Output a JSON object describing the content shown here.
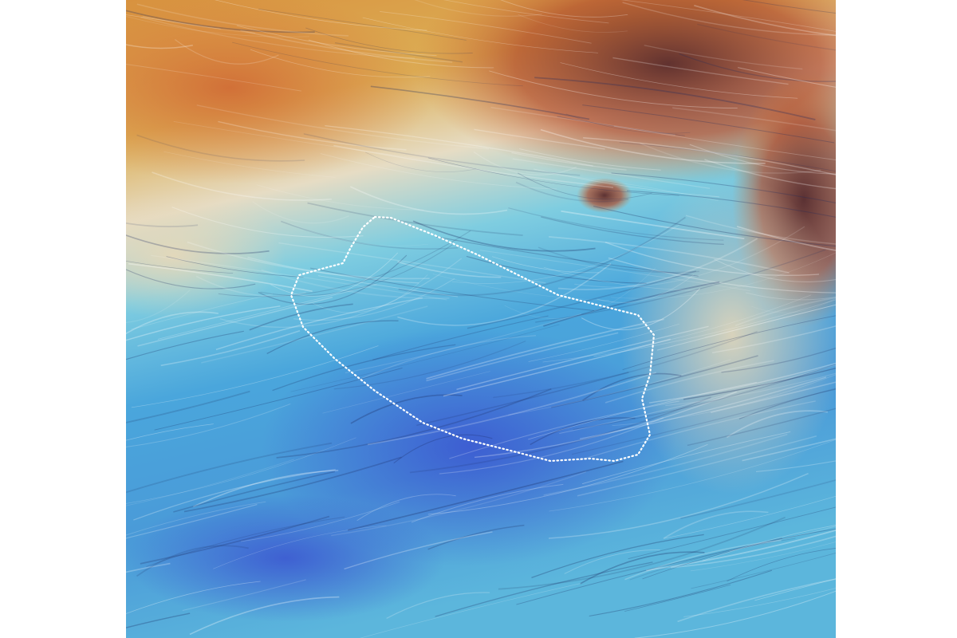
{
  "image": {
    "colors": {
      "background": "#ffffff",
      "dark_brown": "#5a2a2a",
      "orange": "#d8793a",
      "gold": "#dcae55",
      "beige": "#e6dcc4",
      "cyan": "#5cc0da",
      "blue": "#3d86d6",
      "deep_blue": "#3a4fd0",
      "outline": "#ffffff"
    }
  }
}
